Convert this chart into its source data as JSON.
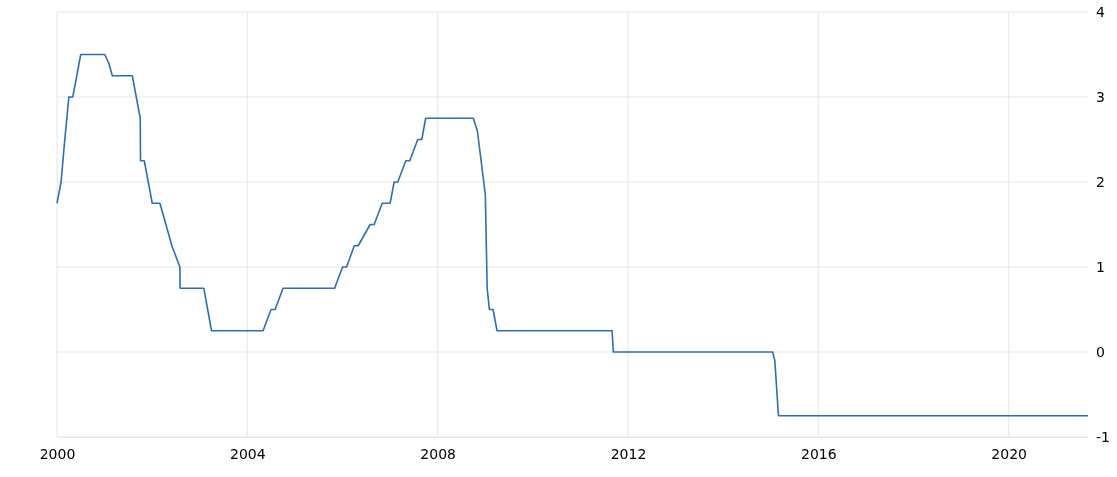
{
  "chart_data": {
    "type": "step",
    "x": [
      "2000-01",
      "2000-02",
      "2000-03",
      "2000-04",
      "2000-05",
      "2000-06",
      "2000-07",
      "2001-01",
      "2001-02",
      "2001-03",
      "2001-08",
      "2001-10-01",
      "2001-10-03",
      "2001-11",
      "2002-01",
      "2002-03",
      "2002-06",
      "2002-08-01",
      "2002-08-03",
      "2003-02",
      "2003-04",
      "2004-05",
      "2004-07",
      "2004-08",
      "2004-10",
      "2005-11",
      "2006-01",
      "2006-02",
      "2006-04",
      "2006-05",
      "2006-08",
      "2006-09",
      "2006-11",
      "2007-01",
      "2007-02",
      "2007-03",
      "2007-05",
      "2007-06",
      "2007-08",
      "2007-09",
      "2007-10",
      "2008-10",
      "2008-11",
      "2009-01-01",
      "2009-01-15",
      "2009-02",
      "2009-03",
      "2009-04",
      "2011-09-01",
      "2011-09-10",
      "2015-01-15",
      "2015-02-01",
      "2015-03",
      "2021-09"
    ],
    "values": [
      1.75,
      2.0,
      2.5,
      3.0,
      3.0,
      3.25,
      3.5,
      3.5,
      3.4,
      3.25,
      3.25,
      2.75,
      2.25,
      2.25,
      1.75,
      1.75,
      1.25,
      1.0,
      0.75,
      0.75,
      0.25,
      0.25,
      0.5,
      0.5,
      0.75,
      0.75,
      1.0,
      1.0,
      1.25,
      1.25,
      1.5,
      1.5,
      1.75,
      1.75,
      2.0,
      2.0,
      2.25,
      2.25,
      2.5,
      2.5,
      2.75,
      2.75,
      2.6,
      1.85,
      0.75,
      0.5,
      0.5,
      0.25,
      0.25,
      0,
      0,
      -0.1,
      -0.75,
      -0.75
    ],
    "color": "#2f6fb0",
    "xlim": [
      "2000-01",
      "2021-09"
    ],
    "xticks": [
      {
        "value": "2000-01",
        "label": "2000"
      },
      {
        "value": "2004-01",
        "label": "2004"
      },
      {
        "value": "2008-01",
        "label": "2008"
      },
      {
        "value": "2012-01",
        "label": "2012"
      },
      {
        "value": "2016-01",
        "label": "2016"
      },
      {
        "value": "2020-01",
        "label": "2020"
      }
    ],
    "ylim": [
      -1,
      4
    ],
    "yticks": [
      -1,
      0,
      1,
      2,
      3,
      4
    ],
    "grid": true
  }
}
